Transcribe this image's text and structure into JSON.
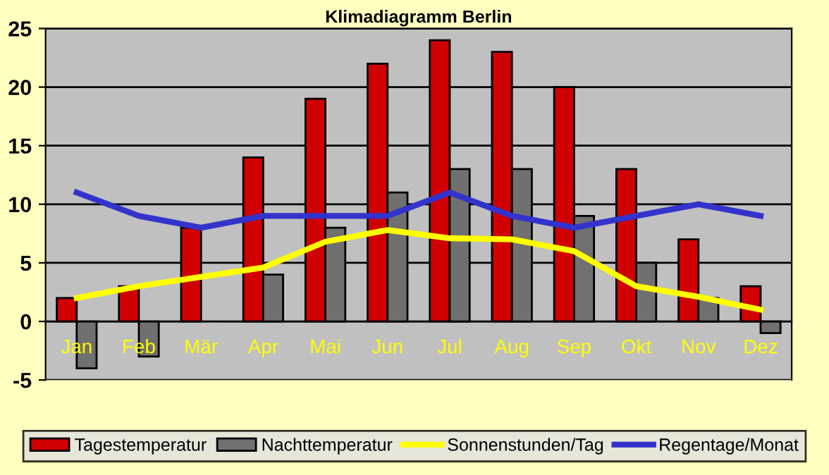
{
  "chart_data": {
    "type": "bar",
    "title": "Klimadiagramm Berlin",
    "categories": [
      "Jan",
      "Feb",
      "Mär",
      "Apr",
      "Mai",
      "Jun",
      "Jul",
      "Aug",
      "Sep",
      "Okt",
      "Nov",
      "Dez"
    ],
    "series": [
      {
        "name": "Tagestemperatur",
        "color": "#d00000",
        "values": [
          2,
          3,
          8,
          14,
          19,
          22,
          24,
          23,
          20,
          13,
          7,
          3
        ]
      },
      {
        "name": "Nachttemperatur",
        "color": "#707070",
        "values": [
          -4,
          -3,
          0,
          4,
          8,
          11,
          13,
          13,
          9,
          5,
          2,
          -1
        ]
      },
      {
        "name": "Sonnenstunden/Tag",
        "type": "line",
        "color": "#ffff00",
        "values": [
          2,
          3,
          3.8,
          4.6,
          6.8,
          7.8,
          7.1,
          7,
          6,
          3,
          2.1,
          1
        ]
      },
      {
        "name": "Regentage/Monat",
        "type": "line",
        "color": "#3333cc",
        "values": [
          11,
          9,
          8,
          9,
          9,
          9,
          11,
          9,
          8,
          9,
          10,
          9
        ]
      }
    ],
    "ylim": [
      -5,
      25
    ],
    "yticks": [
      -5,
      0,
      5,
      10,
      15,
      20,
      25
    ],
    "grid": "y",
    "legend": "bottom",
    "marker": "none"
  }
}
